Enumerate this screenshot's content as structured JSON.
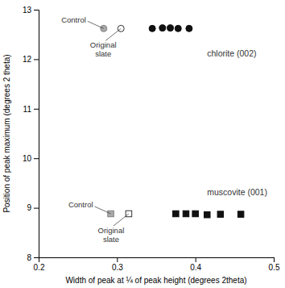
{
  "chart_data": {
    "type": "scatter",
    "xlabel": "Width of peak at ¼ of peak height (degrees 2theta)",
    "ylabel": "Position of peak maximum (degrees 2 theta)",
    "xlim": [
      0.2,
      0.5
    ],
    "ylim": [
      8,
      13
    ],
    "xticks": [
      0.2,
      0.3,
      0.4,
      0.5
    ],
    "yticks": [
      8,
      9,
      10,
      11,
      12,
      13
    ],
    "series": [
      {
        "x": [
          0.345,
          0.358,
          0.368,
          0.378,
          0.392
        ],
        "values": [
          12.62,
          12.63,
          12.63,
          12.62,
          12.62
        ],
        "color": "#111111",
        "marker": "circle"
      },
      {
        "x": [
          0.283
        ],
        "values": [
          12.62
        ],
        "color": "#aaaaaa",
        "marker": "circle"
      },
      {
        "x": [
          0.305
        ],
        "values": [
          12.62
        ],
        "color": "#333333",
        "marker": "circle-open"
      },
      {
        "x": [
          0.375,
          0.388,
          0.4,
          0.415,
          0.432,
          0.458
        ],
        "values": [
          8.88,
          8.88,
          8.88,
          8.86,
          8.87,
          8.87
        ],
        "color": "#111111",
        "marker": "square"
      },
      {
        "x": [
          0.292
        ],
        "values": [
          8.88
        ],
        "color": "#aaaaaa",
        "marker": "square"
      },
      {
        "x": [
          0.315
        ],
        "values": [
          8.88
        ],
        "color": "#333333",
        "marker": "square-open"
      }
    ],
    "labels": [
      {
        "text": "chlorite (002)",
        "x": 0.415,
        "y": 12.18
      },
      {
        "text": "muscovite (001)",
        "x": 0.415,
        "y": 9.38
      }
    ],
    "annotations": [
      {
        "text": "Control",
        "x": 0.283,
        "y": 12.62
      },
      {
        "text": "Original\nslate",
        "x": 0.305,
        "y": 12.62
      },
      {
        "text": "Control",
        "x": 0.292,
        "y": 8.88
      },
      {
        "text": "Original\nslate",
        "x": 0.315,
        "y": 8.88
      }
    ]
  }
}
